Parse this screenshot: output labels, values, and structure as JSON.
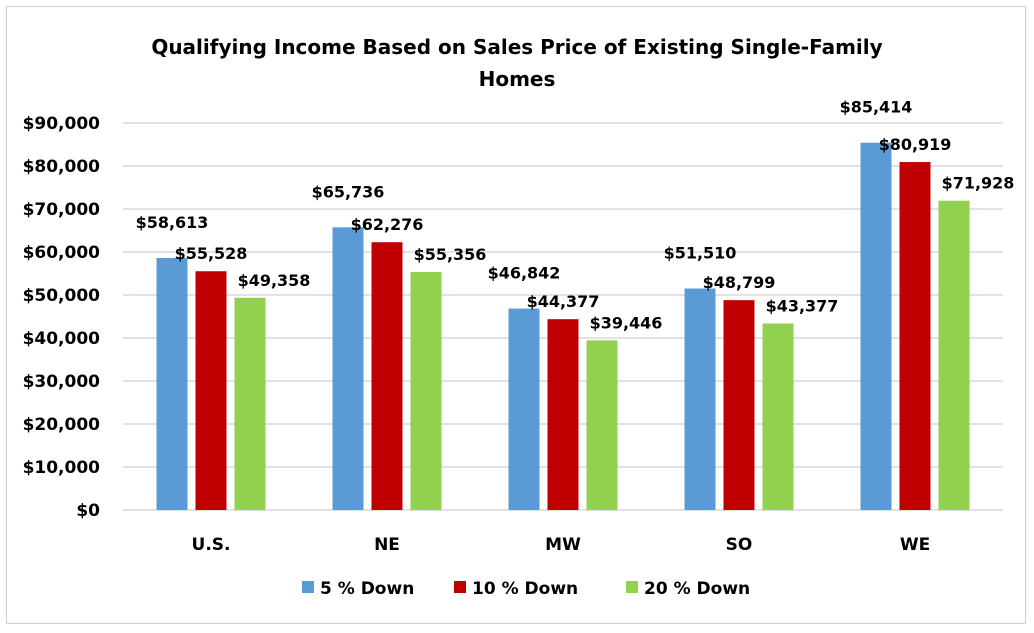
{
  "chart_data": {
    "type": "bar",
    "title": "Qualifying Income Based on Sales Price of Existing Single-Family Homes",
    "title_lines": [
      "Qualifying Income Based on Sales Price of Existing Single-Family",
      "Homes"
    ],
    "categories": [
      "U.S.",
      "NE",
      "MW",
      "SO",
      "WE"
    ],
    "series": [
      {
        "name": "5 % Down",
        "color": "#5B9BD5",
        "values": [
          58613,
          65736,
          46842,
          51510,
          85414
        ],
        "labels": [
          "$58,613",
          "$65,736",
          "$46,842",
          "$51,510",
          "$85,414"
        ]
      },
      {
        "name": "10 % Down",
        "color": "#C00000",
        "values": [
          55528,
          62276,
          44377,
          48799,
          80919
        ],
        "labels": [
          "$55,528",
          "$62,276",
          "$44,377",
          "$48,799",
          "$80,919"
        ]
      },
      {
        "name": "20 % Down",
        "color": "#92D050",
        "values": [
          49358,
          55356,
          39446,
          43377,
          71928
        ],
        "labels": [
          "$49,358",
          "$55,356",
          "$39,446",
          "$43,377",
          "$71,928"
        ]
      }
    ],
    "ylim": [
      0,
      90000
    ],
    "yticks": [
      "$0",
      "$10,000",
      "$20,000",
      "$30,000",
      "$40,000",
      "$50,000",
      "$60,000",
      "$70,000",
      "$80,000",
      "$90,000"
    ],
    "xlabel": "",
    "ylabel": "",
    "grid": true,
    "gridline_color": "#D9D9D9",
    "legend_position": "bottom"
  }
}
